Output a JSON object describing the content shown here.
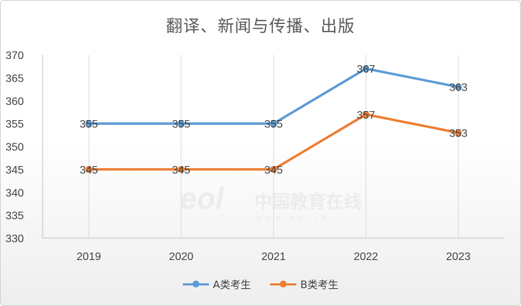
{
  "chart_data": {
    "type": "line",
    "title": "翻译、新闻与传播、出版",
    "categories": [
      "2019",
      "2020",
      "2021",
      "2022",
      "2023"
    ],
    "series": [
      {
        "name": "A类考生",
        "values": [
          355,
          355,
          355,
          367,
          363
        ],
        "color": "#5b9bd5"
      },
      {
        "name": "B类考生",
        "values": [
          345,
          345,
          345,
          357,
          353
        ],
        "color": "#ed7d31"
      }
    ],
    "ylim": [
      330,
      370
    ],
    "yticks": [
      330,
      335,
      340,
      345,
      350,
      355,
      360,
      365,
      370
    ],
    "grid": "vertical-category",
    "legend": "bottom",
    "watermark": {
      "cn": "中国教育在线",
      "url": "w w w . e o l . c n"
    }
  }
}
